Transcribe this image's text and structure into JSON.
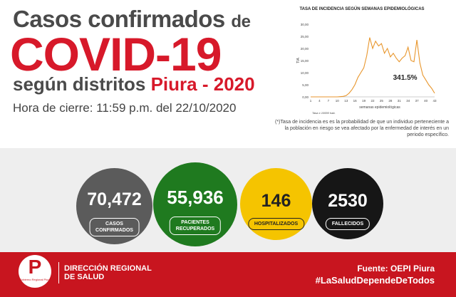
{
  "header": {
    "line1": "Casos confirmados",
    "line1_suffix": "de",
    "line2": "COVID-19",
    "line3": "según distritos",
    "line3_place": "Piura",
    "line3_sep": " - ",
    "line3_year": "2020",
    "closing_time": "Hora de cierre: 11:59 p.m. del 22/10/2020"
  },
  "chart_data": {
    "type": "line",
    "title": "TASA DE INCIDENCIA SEGÚN SEMANAS EPIDEMIOLÓGICAS",
    "xlabel": "semanas epidemiológicas",
    "ylabel": "TIA",
    "rate_note": "Tasa x 10000 hab.",
    "annotation": "341.5%",
    "x_ticks": [
      1,
      4,
      7,
      10,
      13,
      16,
      19,
      22,
      25,
      28,
      31,
      34,
      37,
      40,
      43
    ],
    "y_ticks": [
      "0,00",
      "5,00",
      "10,00",
      "15,00",
      "20,00",
      "25,00",
      "30,00"
    ],
    "ylim": [
      0,
      30
    ],
    "xlim": [
      1,
      43
    ],
    "color": "#e8962c",
    "x": [
      1,
      2,
      3,
      4,
      5,
      6,
      7,
      8,
      9,
      10,
      11,
      12,
      13,
      14,
      15,
      16,
      17,
      18,
      19,
      20,
      21,
      22,
      23,
      24,
      25,
      26,
      27,
      28,
      29,
      30,
      31,
      32,
      33,
      34,
      35,
      36,
      37,
      38,
      39,
      40,
      41,
      42,
      43
    ],
    "values": [
      0,
      0,
      0,
      0,
      0,
      0,
      0,
      0,
      0,
      0,
      0.1,
      0.2,
      0.5,
      1.5,
      3,
      5,
      8,
      10,
      12,
      17,
      24.5,
      20,
      23,
      21,
      22,
      18,
      20,
      16.5,
      18,
      16,
      14.5,
      16,
      17,
      20.5,
      15,
      14.5,
      23.5,
      14,
      9,
      7,
      5,
      3.5,
      1.5
    ]
  },
  "footnote": "(*)Tasa de incidencia es es la probabilidad de que un individuo perteneciente a la población en riesgo se vea afectado por la enfermedad de interés en un periodo específico.",
  "stats": {
    "confirmed": {
      "value": "70,472",
      "label1": "CASOS",
      "label2": "CONFIRMADOS",
      "color": "#5b5b5b"
    },
    "recovered": {
      "value": "55,936",
      "label1": "PACIENTES",
      "label2": "RECUPERADOS",
      "color": "#1f7a1f"
    },
    "hospitalized": {
      "value": "146",
      "label1": "HOSPITALIZADOS",
      "color": "#f5c400"
    },
    "deceased": {
      "value": "2530",
      "label1": "FALLECIDOS",
      "color": "#161616"
    }
  },
  "footer": {
    "logo_letter": "P",
    "logo_text": "Gobierno Regional Piura",
    "org_line1": "DIRECCIÓN REGIONAL",
    "org_line2": "DE SALUD",
    "source": "Fuente: OEPI Piura",
    "hashtag": "#LaSaludDependeDeTodos"
  }
}
